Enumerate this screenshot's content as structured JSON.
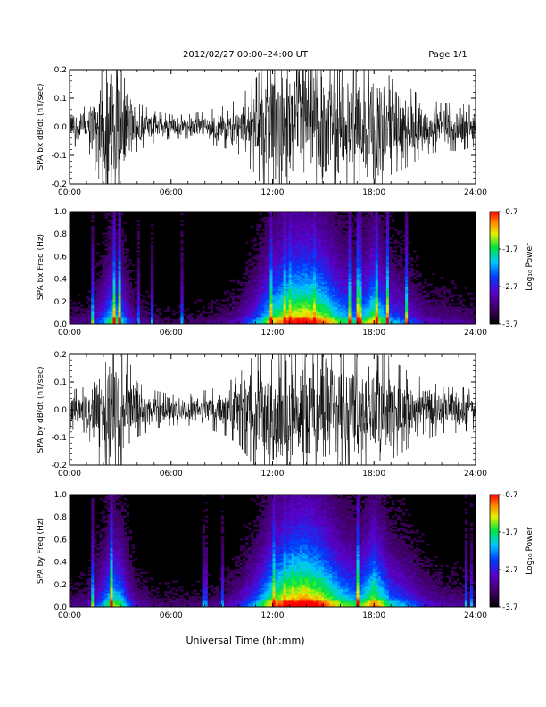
{
  "header": {
    "title": "2012/02/27  00:00–24:00 UT",
    "page": "Page 1/1"
  },
  "footer": {
    "xlabel": "Universal Time (hh:mm)"
  },
  "colorbar": {
    "label": "Log₁₀ Power",
    "ticks": [
      "-0.7",
      "-1.7",
      "-2.7",
      "-3.7"
    ],
    "range": [
      -3.7,
      -0.7
    ]
  },
  "chart_data": [
    {
      "type": "line",
      "ylabel": "SPA bx dB/dt (nT/sec)",
      "xlim": [
        "00:00",
        "24:00"
      ],
      "ylim": [
        -0.2,
        0.2
      ],
      "x_ticks": [
        "00:00",
        "06:00",
        "12:00",
        "18:00",
        "24:00"
      ],
      "y_ticks": [
        "-0.2",
        "-0.1",
        "0.0",
        "0.1",
        "0.2"
      ],
      "envelope": {
        "x_hours": [
          0,
          1,
          2,
          2.5,
          3,
          3.5,
          4,
          5,
          6,
          7,
          8,
          9,
          10,
          11,
          12,
          13,
          14,
          15,
          16,
          17,
          18,
          19,
          20,
          21,
          22,
          23,
          24
        ],
        "amplitude": [
          0.05,
          0.05,
          0.16,
          0.2,
          0.2,
          0.12,
          0.06,
          0.04,
          0.03,
          0.03,
          0.04,
          0.05,
          0.07,
          0.12,
          0.2,
          0.2,
          0.2,
          0.2,
          0.18,
          0.14,
          0.2,
          0.12,
          0.1,
          0.07,
          0.06,
          0.06,
          0.05
        ]
      }
    },
    {
      "type": "heatmap",
      "ylabel": "SPA bx Freq (Hz)",
      "xlim": [
        "00:00",
        "24:00"
      ],
      "ylim": [
        0.0,
        1.0
      ],
      "x_ticks": [
        "00:00",
        "06:00",
        "12:00",
        "18:00",
        "24:00"
      ],
      "y_ticks": [
        "0.0",
        "0.2",
        "0.4",
        "0.6",
        "0.8",
        "1.0"
      ],
      "zlim": [
        -3.7,
        -0.7
      ],
      "activity": {
        "x_hours": [
          0,
          1,
          2,
          2.5,
          3,
          3.5,
          4,
          5,
          6,
          7,
          8,
          9,
          10,
          11,
          12,
          13,
          14,
          15,
          16,
          17,
          18,
          19,
          20,
          21,
          22,
          23,
          24
        ],
        "level": [
          0.15,
          0.15,
          0.45,
          0.65,
          0.6,
          0.35,
          0.2,
          0.12,
          0.1,
          0.1,
          0.12,
          0.15,
          0.25,
          0.45,
          0.75,
          0.9,
          0.95,
          0.85,
          0.65,
          0.55,
          0.8,
          0.5,
          0.4,
          0.25,
          0.2,
          0.2,
          0.15
        ]
      }
    },
    {
      "type": "line",
      "ylabel": "SPA by dB/dt (nT/sec)",
      "xlim": [
        "00:00",
        "24:00"
      ],
      "ylim": [
        -0.2,
        0.2
      ],
      "x_ticks": [
        "00:00",
        "06:00",
        "12:00",
        "18:00",
        "24:00"
      ],
      "y_ticks": [
        "-0.2",
        "-0.1",
        "0.0",
        "0.1",
        "0.2"
      ],
      "envelope": {
        "x_hours": [
          0,
          1,
          2,
          2.5,
          3,
          3.5,
          4,
          5,
          6,
          7,
          8,
          9,
          10,
          11,
          12,
          13,
          14,
          15,
          16,
          17,
          18,
          19,
          20,
          21,
          22,
          23,
          24
        ],
        "amplitude": [
          0.05,
          0.06,
          0.17,
          0.2,
          0.2,
          0.13,
          0.07,
          0.05,
          0.04,
          0.04,
          0.05,
          0.06,
          0.09,
          0.15,
          0.2,
          0.2,
          0.2,
          0.2,
          0.18,
          0.15,
          0.2,
          0.13,
          0.1,
          0.08,
          0.06,
          0.06,
          0.05
        ]
      }
    },
    {
      "type": "heatmap",
      "ylabel": "SPA by Freq (Hz)",
      "xlim": [
        "00:00",
        "24:00"
      ],
      "ylim": [
        0.0,
        1.0
      ],
      "x_ticks": [
        "00:00",
        "06:00",
        "12:00",
        "18:00",
        "24:00"
      ],
      "y_ticks": [
        "0.0",
        "0.2",
        "0.4",
        "0.6",
        "0.8",
        "1.0"
      ],
      "zlim": [
        -3.7,
        -0.7
      ],
      "activity": {
        "x_hours": [
          0,
          1,
          2,
          2.5,
          3,
          3.5,
          4,
          5,
          6,
          7,
          8,
          9,
          10,
          11,
          12,
          13,
          14,
          15,
          16,
          17,
          18,
          19,
          20,
          21,
          22,
          23,
          24
        ],
        "level": [
          0.15,
          0.18,
          0.5,
          0.7,
          0.65,
          0.4,
          0.22,
          0.14,
          0.12,
          0.12,
          0.14,
          0.18,
          0.3,
          0.5,
          0.8,
          0.95,
          1.0,
          0.9,
          0.7,
          0.6,
          0.85,
          0.55,
          0.45,
          0.3,
          0.22,
          0.2,
          0.15
        ]
      }
    }
  ]
}
